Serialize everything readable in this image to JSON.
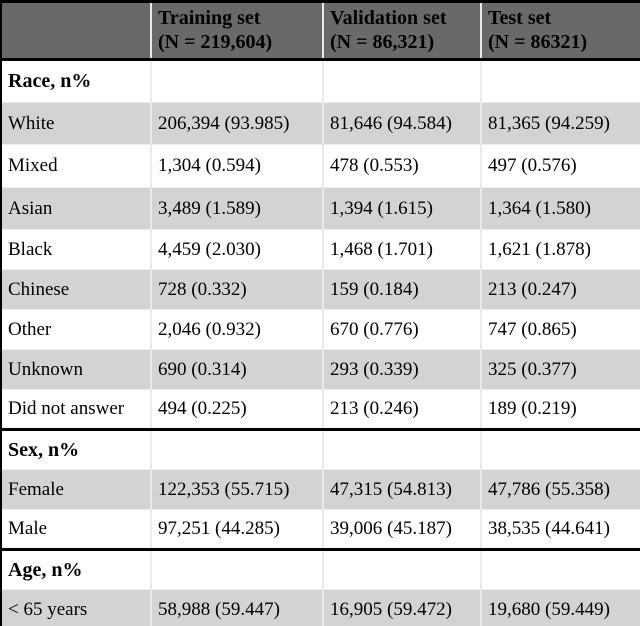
{
  "table": {
    "corner_label": "",
    "columns": [
      {
        "label": "Training set",
        "sub": "(N = 219,604)"
      },
      {
        "label": "Validation set",
        "sub": "(N = 86,321)"
      },
      {
        "label": "Test set",
        "sub": "(N = 86321)"
      }
    ],
    "rows": [
      {
        "label": "Race, n%",
        "section": true,
        "shaded": false,
        "values": [
          "",
          "",
          ""
        ]
      },
      {
        "label": "White",
        "section": false,
        "shaded": true,
        "values": [
          "206,394 (93.985)",
          "81,646 (94.584)",
          "81,365 (94.259)"
        ]
      },
      {
        "label": "Mixed",
        "section": false,
        "shaded": false,
        "values": [
          "1,304 (0.594)",
          "478 (0.553)",
          "497 (0.576)"
        ]
      },
      {
        "label": "Asian",
        "section": false,
        "shaded": true,
        "values": [
          "3,489 (1.589)",
          "1,394 (1.615)",
          "1,364 (1.580)"
        ]
      },
      {
        "label": "Black",
        "section": false,
        "shaded": false,
        "values": [
          "4,459 (2.030)",
          "1,468 (1.701)",
          "1,621 (1.878)"
        ]
      },
      {
        "label": "Chinese",
        "section": false,
        "shaded": true,
        "values": [
          "728 (0.332)",
          "159 (0.184)",
          "213 (0.247)"
        ]
      },
      {
        "label": "Other",
        "section": false,
        "shaded": false,
        "values": [
          "2,046 (0.932)",
          "670 (0.776)",
          "747 (0.865)"
        ]
      },
      {
        "label": "Unknown",
        "section": false,
        "shaded": true,
        "values": [
          "690 (0.314)",
          "293 (0.339)",
          "325 (0.377)"
        ]
      },
      {
        "label": "Did not answer",
        "section": false,
        "shaded": false,
        "values": [
          "494 (0.225)",
          "213 (0.246)",
          "189 (0.219)"
        ]
      },
      {
        "label": "Sex, n%",
        "section": true,
        "shaded": false,
        "values": [
          "",
          "",
          ""
        ]
      },
      {
        "label": "Female",
        "section": false,
        "shaded": true,
        "values": [
          "122,353 (55.715)",
          "47,315 (54.813)",
          "47,786 (55.358)"
        ]
      },
      {
        "label": "Male",
        "section": false,
        "shaded": false,
        "values": [
          "97,251 (44.285)",
          "39,006 (45.187)",
          "38,535 (44.641)"
        ]
      },
      {
        "label": "Age, n%",
        "section": true,
        "shaded": false,
        "values": [
          "",
          "",
          ""
        ]
      },
      {
        "label": "< 65 years",
        "section": false,
        "shaded": true,
        "values": [
          "58,988 (59.447)",
          "16,905 (59.472)",
          "19,680 (59.449)"
        ]
      }
    ]
  },
  "colors": {
    "header_bg": "#696969",
    "shaded_bg": "#d3d3d3",
    "frame": "#000000",
    "divider": "#e9e9e9"
  }
}
